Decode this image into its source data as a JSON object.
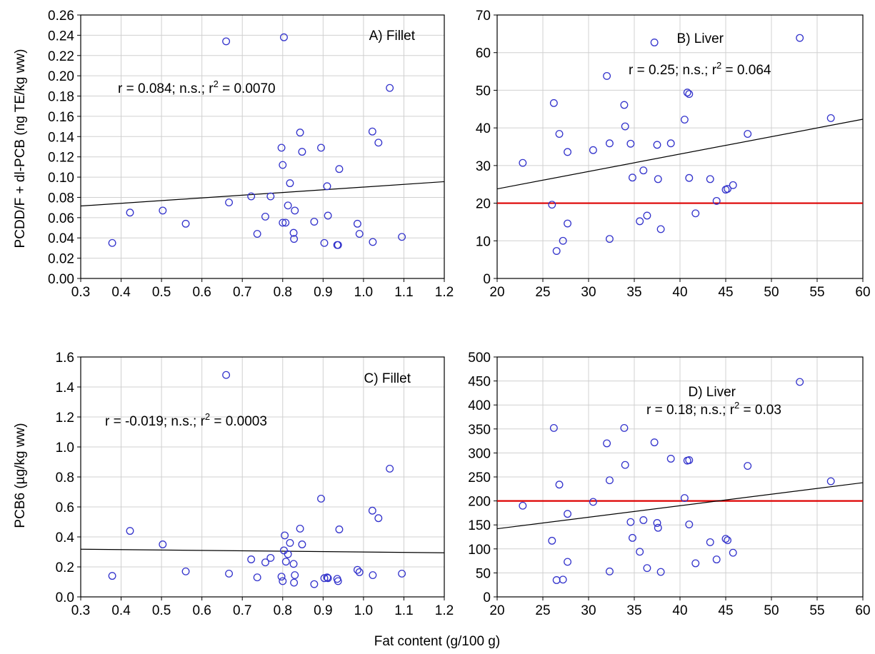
{
  "colors": {
    "marker": "#3333cc",
    "regression": "#000000",
    "threshold": "#dd0000",
    "grid": "#d0d0d0",
    "axis": "#000000"
  },
  "shared_xlabel": "Fat content (g/100 g)",
  "row_ylabels": [
    "PCDD/F + dl-PCB (ng TE/kg ww)",
    "PCB6 (µg/kg ww)"
  ],
  "chart_data": [
    {
      "type": "scatter",
      "panel_label": "A) Fillet",
      "stats_text": "r = 0.084; n.s.; r",
      "stats_sup": "2",
      "stats_tail": " = 0.0070",
      "xlim": [
        0.3,
        1.2
      ],
      "ylim": [
        0,
        0.26
      ],
      "xticks": [
        0.3,
        0.4,
        0.5,
        0.6,
        0.7,
        0.8,
        0.9,
        1.0,
        1.1,
        1.2
      ],
      "yticks": [
        0,
        0.02,
        0.04,
        0.06,
        0.08,
        0.1,
        0.12,
        0.14,
        0.16,
        0.18,
        0.2,
        0.22,
        0.24,
        0.26
      ],
      "xtick_labels": [
        "0.3",
        "0.4",
        "0.5",
        "0.6",
        "0.7",
        "0.8",
        "0.9",
        "1.0",
        "1.1",
        "1.2"
      ],
      "ytick_labels": [
        "0.00",
        "0.02",
        "0.04",
        "0.06",
        "0.08",
        "0.10",
        "0.12",
        "0.14",
        "0.16",
        "0.18",
        "0.20",
        "0.22",
        "0.24",
        "0.26"
      ],
      "grid": true,
      "regression": {
        "x": [
          0.3,
          1.2
        ],
        "y": [
          0.0715,
          0.0955
        ]
      },
      "threshold": null,
      "points": [
        [
          0.378,
          0.035
        ],
        [
          0.422,
          0.065
        ],
        [
          0.503,
          0.067
        ],
        [
          0.56,
          0.054
        ],
        [
          0.66,
          0.234
        ],
        [
          0.667,
          0.075
        ],
        [
          0.722,
          0.081
        ],
        [
          0.737,
          0.044
        ],
        [
          0.757,
          0.061
        ],
        [
          0.77,
          0.081
        ],
        [
          0.797,
          0.129
        ],
        [
          0.8,
          0.112
        ],
        [
          0.803,
          0.238
        ],
        [
          0.8,
          0.055
        ],
        [
          0.807,
          0.055
        ],
        [
          0.813,
          0.072
        ],
        [
          0.818,
          0.094
        ],
        [
          0.827,
          0.045
        ],
        [
          0.828,
          0.039
        ],
        [
          0.83,
          0.067
        ],
        [
          0.843,
          0.144
        ],
        [
          0.848,
          0.125
        ],
        [
          0.878,
          0.056
        ],
        [
          0.895,
          0.129
        ],
        [
          0.903,
          0.035
        ],
        [
          0.91,
          0.091
        ],
        [
          0.912,
          0.062
        ],
        [
          0.935,
          0.033
        ],
        [
          0.937,
          0.033
        ],
        [
          0.94,
          0.108
        ],
        [
          0.985,
          0.054
        ],
        [
          0.99,
          0.044
        ],
        [
          1.022,
          0.145
        ],
        [
          1.023,
          0.036
        ],
        [
          1.037,
          0.134
        ],
        [
          1.065,
          0.188
        ],
        [
          1.095,
          0.041
        ]
      ]
    },
    {
      "type": "scatter",
      "panel_label": "B) Liver",
      "stats_text": "r = 0.25; n.s.; r",
      "stats_sup": "2",
      "stats_tail": " = 0.064",
      "xlim": [
        20,
        60
      ],
      "ylim": [
        0,
        70
      ],
      "xticks": [
        20,
        25,
        30,
        35,
        40,
        45,
        50,
        55,
        60
      ],
      "yticks": [
        0,
        10,
        20,
        30,
        40,
        50,
        60,
        70
      ],
      "xtick_labels": [
        "20",
        "25",
        "30",
        "35",
        "40",
        "45",
        "50",
        "55",
        "60"
      ],
      "ytick_labels": [
        "0",
        "10",
        "20",
        "30",
        "40",
        "50",
        "60",
        "70"
      ],
      "grid": true,
      "regression": {
        "x": [
          20,
          60
        ],
        "y": [
          23.8,
          42.3
        ]
      },
      "threshold": 20,
      "points": [
        [
          22.8,
          30.7
        ],
        [
          26.0,
          19.6
        ],
        [
          26.2,
          46.6
        ],
        [
          26.5,
          7.3
        ],
        [
          26.8,
          38.4
        ],
        [
          27.2,
          10.0
        ],
        [
          27.7,
          33.6
        ],
        [
          27.7,
          14.6
        ],
        [
          30.5,
          34.1
        ],
        [
          32.0,
          53.8
        ],
        [
          32.3,
          35.9
        ],
        [
          32.3,
          10.5
        ],
        [
          33.9,
          46.1
        ],
        [
          34.0,
          40.4
        ],
        [
          34.6,
          35.8
        ],
        [
          34.8,
          26.8
        ],
        [
          35.6,
          15.2
        ],
        [
          36.0,
          28.7
        ],
        [
          36.4,
          16.7
        ],
        [
          37.2,
          62.7
        ],
        [
          37.5,
          35.5
        ],
        [
          37.6,
          26.4
        ],
        [
          37.9,
          13.1
        ],
        [
          39.0,
          35.9
        ],
        [
          40.5,
          42.2
        ],
        [
          40.8,
          49.4
        ],
        [
          41.0,
          49.0
        ],
        [
          41.0,
          26.7
        ],
        [
          41.7,
          17.3
        ],
        [
          43.3,
          26.4
        ],
        [
          44.0,
          20.6
        ],
        [
          45.0,
          23.6
        ],
        [
          45.2,
          23.8
        ],
        [
          45.8,
          24.8
        ],
        [
          47.4,
          38.4
        ],
        [
          53.1,
          63.9
        ],
        [
          56.5,
          42.6
        ]
      ]
    },
    {
      "type": "scatter",
      "panel_label": "C) Fillet",
      "stats_text": "r = -0.019; n.s.; r",
      "stats_sup": "2",
      "stats_tail": " = 0.0003",
      "xlim": [
        0.3,
        1.2
      ],
      "ylim": [
        0,
        1.6
      ],
      "xticks": [
        0.3,
        0.4,
        0.5,
        0.6,
        0.7,
        0.8,
        0.9,
        1.0,
        1.1,
        1.2
      ],
      "yticks": [
        0,
        0.2,
        0.4,
        0.6,
        0.8,
        1.0,
        1.2,
        1.4,
        1.6
      ],
      "xtick_labels": [
        "0.3",
        "0.4",
        "0.5",
        "0.6",
        "0.7",
        "0.8",
        "0.9",
        "1.0",
        "1.1",
        "1.2"
      ],
      "ytick_labels": [
        "0.0",
        "0.2",
        "0.4",
        "0.6",
        "0.8",
        "1.0",
        "1.2",
        "1.4",
        "1.6"
      ],
      "grid": true,
      "regression": {
        "x": [
          0.3,
          1.2
        ],
        "y": [
          0.318,
          0.294
        ]
      },
      "threshold": null,
      "points": [
        [
          0.378,
          0.14
        ],
        [
          0.422,
          0.44
        ],
        [
          0.503,
          0.35
        ],
        [
          0.56,
          0.17
        ],
        [
          0.66,
          1.48
        ],
        [
          0.667,
          0.155
        ],
        [
          0.722,
          0.25
        ],
        [
          0.737,
          0.13
        ],
        [
          0.757,
          0.23
        ],
        [
          0.77,
          0.26
        ],
        [
          0.797,
          0.135
        ],
        [
          0.8,
          0.105
        ],
        [
          0.803,
          0.31
        ],
        [
          0.805,
          0.41
        ],
        [
          0.808,
          0.235
        ],
        [
          0.813,
          0.285
        ],
        [
          0.818,
          0.36
        ],
        [
          0.827,
          0.22
        ],
        [
          0.828,
          0.095
        ],
        [
          0.83,
          0.145
        ],
        [
          0.843,
          0.455
        ],
        [
          0.848,
          0.35
        ],
        [
          0.878,
          0.085
        ],
        [
          0.895,
          0.655
        ],
        [
          0.903,
          0.125
        ],
        [
          0.91,
          0.13
        ],
        [
          0.912,
          0.125
        ],
        [
          0.935,
          0.12
        ],
        [
          0.937,
          0.105
        ],
        [
          0.94,
          0.45
        ],
        [
          0.985,
          0.18
        ],
        [
          0.99,
          0.165
        ],
        [
          1.022,
          0.575
        ],
        [
          1.023,
          0.145
        ],
        [
          1.037,
          0.525
        ],
        [
          1.065,
          0.855
        ],
        [
          1.095,
          0.155
        ]
      ]
    },
    {
      "type": "scatter",
      "panel_label": "D) Liver",
      "stats_text": "r =  0.18; n.s.; r",
      "stats_sup": "2",
      "stats_tail": " = 0.03",
      "xlim": [
        20,
        60
      ],
      "ylim": [
        0,
        500
      ],
      "xticks": [
        20,
        25,
        30,
        35,
        40,
        45,
        50,
        55,
        60
      ],
      "yticks": [
        0,
        50,
        100,
        150,
        200,
        250,
        300,
        350,
        400,
        450,
        500
      ],
      "xtick_labels": [
        "20",
        "25",
        "30",
        "35",
        "40",
        "45",
        "50",
        "55",
        "60"
      ],
      "ytick_labels": [
        "0",
        "50",
        "100",
        "150",
        "200",
        "250",
        "300",
        "350",
        "400",
        "450",
        "500"
      ],
      "grid": true,
      "regression": {
        "x": [
          20,
          60
        ],
        "y": [
          142,
          238
        ]
      },
      "threshold": 200,
      "points": [
        [
          22.8,
          190
        ],
        [
          26.0,
          117
        ],
        [
          26.2,
          352
        ],
        [
          26.5,
          35
        ],
        [
          26.8,
          234
        ],
        [
          27.2,
          36
        ],
        [
          27.7,
          173
        ],
        [
          27.7,
          73
        ],
        [
          30.5,
          198
        ],
        [
          32.0,
          320
        ],
        [
          32.3,
          243
        ],
        [
          32.3,
          53
        ],
        [
          33.9,
          352
        ],
        [
          34.0,
          275
        ],
        [
          34.6,
          156
        ],
        [
          34.8,
          123
        ],
        [
          35.6,
          94
        ],
        [
          36.0,
          160
        ],
        [
          36.4,
          60
        ],
        [
          37.2,
          322
        ],
        [
          37.5,
          154
        ],
        [
          37.6,
          144
        ],
        [
          37.9,
          52
        ],
        [
          39.0,
          288
        ],
        [
          40.5,
          206
        ],
        [
          40.8,
          284
        ],
        [
          41.0,
          285
        ],
        [
          41.0,
          151
        ],
        [
          41.7,
          70
        ],
        [
          43.3,
          114
        ],
        [
          44.0,
          78
        ],
        [
          45.0,
          121
        ],
        [
          45.2,
          118
        ],
        [
          45.8,
          92
        ],
        [
          47.4,
          273
        ],
        [
          53.1,
          448
        ],
        [
          56.5,
          241
        ]
      ]
    }
  ]
}
